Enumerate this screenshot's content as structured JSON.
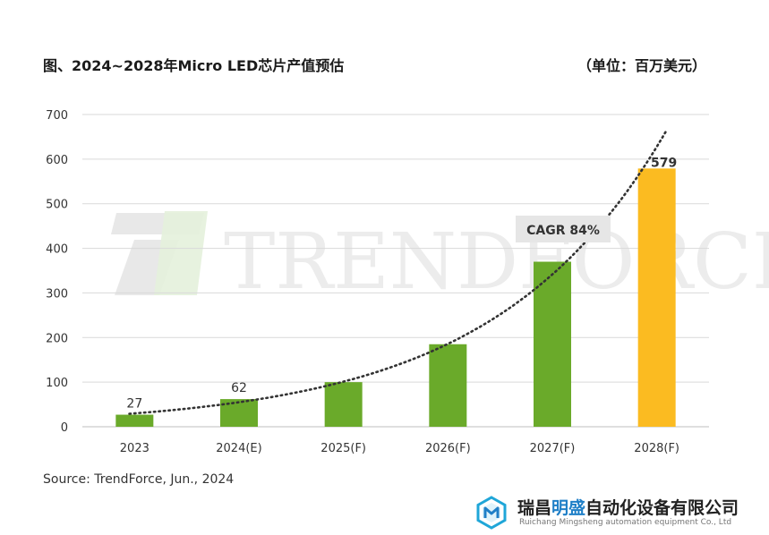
{
  "header": {
    "title": "图、2024~2028年Micro LED芯片产值预估",
    "unit": "（单位：百万美元）"
  },
  "watermark": {
    "text": "TRENDFORCE"
  },
  "annotation": {
    "cagr": "CAGR 84%"
  },
  "footer": {
    "source": "Source: TrendForce, Jun., 2024"
  },
  "company": {
    "name_part1": "瑞昌",
    "name_highlight": "明盛",
    "name_part2": "自动化设备有限公司",
    "name_en": "Ruichang Mingsheng automation equipment Co., Ltd",
    "logo_icon": "hexagon-logo-icon"
  },
  "colors": {
    "bar": "#6aaa2a",
    "highlight_bar": "#fbbb21",
    "trend": "#333333",
    "grid": "#d9d9d9"
  },
  "chart_data": {
    "type": "bar",
    "categories": [
      "2023",
      "2024(E)",
      "2025(F)",
      "2026(F)",
      "2027(F)",
      "2028(F)"
    ],
    "values": [
      27,
      62,
      100,
      185,
      370,
      579
    ],
    "data_labels": [
      "27",
      "62",
      "",
      "",
      "",
      "579"
    ],
    "highlight_index": 5,
    "ylim": [
      0,
      700
    ],
    "yticks": [
      0,
      100,
      200,
      300,
      400,
      500,
      600,
      700
    ],
    "grid": true,
    "trendline": "exponential, dotted"
  }
}
